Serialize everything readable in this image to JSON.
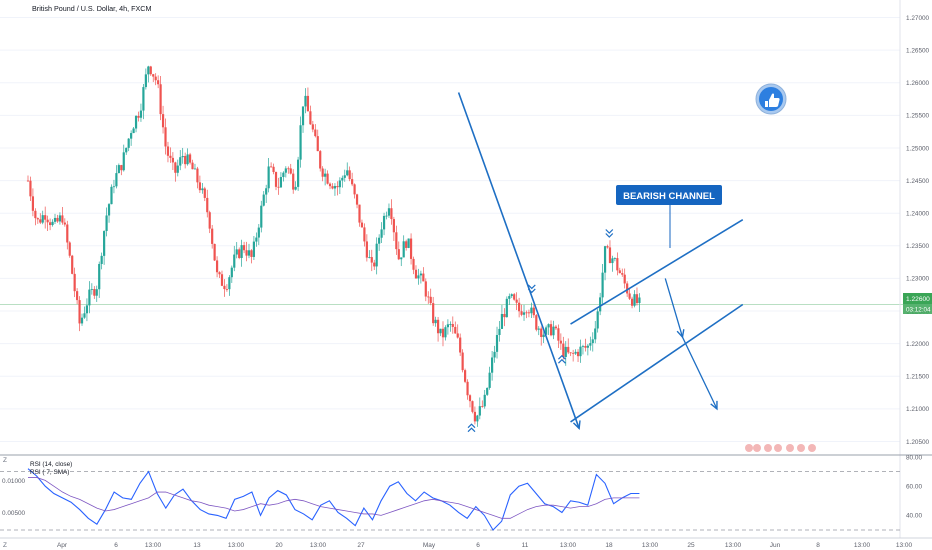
{
  "chart_data": [
    {
      "type": "candlestick",
      "title": "British Pound / U.S. Dollar, 4h, FXCM",
      "ylim": [
        1.204,
        1.271
      ],
      "y_ticks": [
        "1.27000",
        "1.26500",
        "1.26000",
        "1.25500",
        "1.25000",
        "1.24500",
        "1.24000",
        "1.23500",
        "1.23000",
        "1.22500",
        "1.22000",
        "1.21500",
        "1.21000",
        "1.20500"
      ],
      "x_ticks": [
        "Apr",
        "6",
        "13:00",
        "13",
        "13:00",
        "20",
        "13:00",
        "27",
        "May",
        "6",
        "11",
        "13:00",
        "18",
        "13:00",
        "25",
        "13:00",
        "Jun",
        "8",
        "13:00",
        "13:00"
      ],
      "last_price": "1.22600",
      "countdown": "03:12:04",
      "annotation": "BEARISH CHANNEL",
      "close_path": [
        [
          0,
          1.245
        ],
        [
          0.02,
          1.2385
        ],
        [
          0.04,
          1.24
        ],
        [
          0.06,
          1.238
        ],
        [
          0.08,
          1.2395
        ],
        [
          0.1,
          1.232
        ],
        [
          0.12,
          1.223
        ],
        [
          0.14,
          1.227
        ],
        [
          0.16,
          1.229
        ],
        [
          0.18,
          1.239
        ],
        [
          0.2,
          1.245
        ],
        [
          0.22,
          1.248
        ],
        [
          0.24,
          1.253
        ],
        [
          0.26,
          1.256
        ],
        [
          0.28,
          1.263
        ],
        [
          0.3,
          1.26
        ],
        [
          0.32,
          1.25
        ],
        [
          0.34,
          1.246
        ],
        [
          0.36,
          1.249
        ],
        [
          0.38,
          1.247
        ],
        [
          0.4,
          1.244
        ],
        [
          0.42,
          1.2395
        ],
        [
          0.44,
          1.23
        ],
        [
          0.46,
          1.229
        ],
        [
          0.48,
          1.233
        ],
        [
          0.5,
          1.235
        ],
        [
          0.52,
          1.233
        ],
        [
          0.54,
          1.24
        ],
        [
          0.56,
          1.247
        ],
        [
          0.58,
          1.244
        ],
        [
          0.6,
          1.2475
        ],
        [
          0.62,
          1.244
        ],
        [
          0.64,
          1.258
        ],
        [
          0.66,
          1.253
        ],
        [
          0.68,
          1.247
        ],
        [
          0.7,
          1.245
        ],
        [
          0.72,
          1.244
        ],
        [
          0.74,
          1.247
        ],
        [
          0.76,
          1.242
        ],
        [
          0.78,
          1.236
        ],
        [
          0.8,
          1.231
        ],
        [
          0.82,
          1.238
        ],
        [
          0.84,
          1.242
        ],
        [
          0.86,
          1.233
        ],
        [
          0.88,
          1.236
        ],
        [
          0.9,
          1.231
        ],
        [
          0.92,
          1.229
        ],
        [
          0.94,
          1.224
        ],
        [
          0.96,
          1.221
        ],
        [
          0.98,
          1.223
        ],
        [
          1.0,
          1.22
        ],
        [
          1.02,
          1.213
        ],
        [
          1.04,
          1.2085
        ],
        [
          1.06,
          1.211
        ],
        [
          1.08,
          1.218
        ],
        [
          1.1,
          1.224
        ],
        [
          1.12,
          1.227
        ],
        [
          1.14,
          1.225
        ],
        [
          1.16,
          1.226
        ],
        [
          1.18,
          1.223
        ],
        [
          1.2,
          1.2215
        ],
        [
          1.22,
          1.2225
        ],
        [
          1.24,
          1.219
        ],
        [
          1.26,
          1.218
        ],
        [
          1.28,
          1.219
        ],
        [
          1.3,
          1.2195
        ],
        [
          1.32,
          1.223
        ],
        [
          1.34,
          1.234
        ],
        [
          1.36,
          1.233
        ],
        [
          1.38,
          1.23
        ],
        [
          1.4,
          1.227
        ],
        [
          1.42,
          1.226
        ]
      ],
      "drawings": {
        "downtrend_line": [
          [
            1.0,
            1.2585
          ],
          [
            1.28,
            1.207
          ]
        ],
        "channel_upper": [
          [
            1.26,
            1.223
          ],
          [
            1.66,
            1.239
          ]
        ],
        "channel_lower": [
          [
            1.26,
            1.208
          ],
          [
            1.66,
            1.226
          ]
        ],
        "projection": [
          [
            1.48,
            1.23
          ],
          [
            1.52,
            1.221
          ],
          [
            1.6,
            1.21
          ]
        ]
      },
      "marker_glyph": "»",
      "icon": "thumbs-up-icon",
      "colors": {
        "up": "#26a69a",
        "down": "#ef5350",
        "drawing": "#1e6fc4",
        "price_label": "#3aa556"
      }
    },
    {
      "type": "line",
      "title": "RSI (14, close)",
      "legend_extra": "RSI ( 7, SMA)",
      "y_ticks_right": [
        "80.00",
        "60.00",
        "40.00"
      ],
      "y_ticks_left": [
        "0.01000",
        "0.00500"
      ],
      "series": [
        {
          "name": "RSI (14, close)",
          "color": "#2962ff",
          "values": [
            72,
            67,
            60,
            55,
            52,
            49,
            44,
            38,
            34,
            44,
            56,
            52,
            51,
            62,
            70,
            55,
            45,
            54,
            58,
            50,
            44,
            41,
            40,
            38,
            51,
            53,
            56,
            40,
            52,
            57,
            54,
            44,
            41,
            37,
            47,
            50,
            42,
            38,
            33,
            45,
            37,
            50,
            60,
            63,
            55,
            50,
            56,
            52,
            50,
            47,
            42,
            38,
            46,
            40,
            30,
            36,
            54,
            60,
            62,
            55,
            48,
            46,
            42,
            50,
            49,
            47,
            68,
            62,
            48,
            52,
            55,
            55
          ]
        },
        {
          "name": "RSI (7, SMA)",
          "color": "#7e57c2",
          "values": [
            66,
            66,
            64,
            60,
            56,
            53,
            51,
            48,
            45,
            43,
            44,
            46,
            48,
            50,
            52,
            56,
            56,
            54,
            52,
            50,
            49,
            47,
            46,
            45,
            43,
            44,
            46,
            48,
            47,
            48,
            50,
            51,
            50,
            48,
            46,
            45,
            44,
            43,
            42,
            41,
            41,
            40,
            42,
            44,
            46,
            48,
            50,
            51,
            50,
            49,
            48,
            46,
            44,
            42,
            40,
            38,
            38,
            41,
            44,
            46,
            47,
            47,
            46,
            45,
            46,
            46,
            48,
            51,
            52,
            52,
            52,
            52
          ]
        }
      ],
      "ylim": [
        30,
        80
      ],
      "levels": [
        70,
        30
      ]
    }
  ]
}
